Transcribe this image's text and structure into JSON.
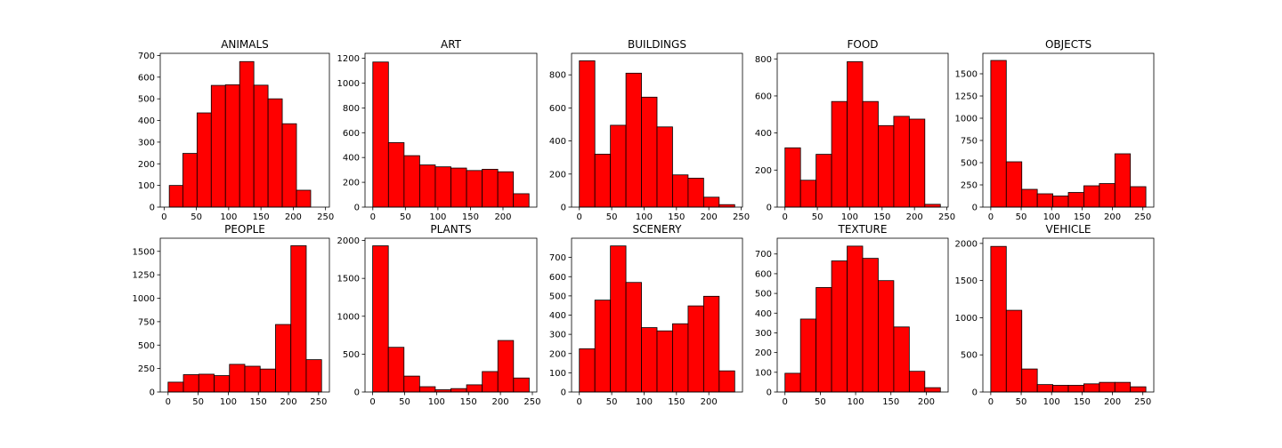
{
  "figure": {
    "bar_color": "#ff0000",
    "edge_color": "#000000",
    "background": "#ffffff"
  },
  "chart_data": [
    {
      "type": "bar",
      "title": "ANIMALS",
      "bins": [
        [
          8,
          29
        ],
        [
          29,
          51
        ],
        [
          51,
          73
        ],
        [
          73,
          95
        ],
        [
          95,
          117
        ],
        [
          117,
          139
        ],
        [
          139,
          161
        ],
        [
          161,
          183
        ],
        [
          183,
          205
        ],
        [
          205,
          227
        ]
      ],
      "values": [
        100,
        248,
        435,
        562,
        565,
        672,
        563,
        500,
        385,
        78
      ],
      "xlim": [
        -6,
        256
      ],
      "xticks": [
        0,
        50,
        100,
        150,
        200,
        250
      ],
      "ylim": [
        0,
        710
      ],
      "yticks": [
        0,
        100,
        200,
        300,
        400,
        500,
        600,
        700
      ]
    },
    {
      "type": "bar",
      "title": "ART",
      "bins": [
        [
          0,
          24
        ],
        [
          24,
          48
        ],
        [
          48,
          72
        ],
        [
          72,
          96
        ],
        [
          96,
          120
        ],
        [
          120,
          144
        ],
        [
          144,
          168
        ],
        [
          168,
          192
        ],
        [
          192,
          216
        ],
        [
          216,
          240
        ]
      ],
      "values": [
        1170,
        520,
        415,
        340,
        325,
        315,
        295,
        305,
        285,
        108
      ],
      "xlim": [
        -12,
        252
      ],
      "xticks": [
        0,
        50,
        100,
        150,
        200
      ],
      "ylim": [
        0,
        1240
      ],
      "yticks": [
        0,
        200,
        400,
        600,
        800,
        1000,
        1200
      ]
    },
    {
      "type": "bar",
      "title": "BUILDINGS",
      "bins": [
        [
          0,
          24
        ],
        [
          24,
          48
        ],
        [
          48,
          72
        ],
        [
          72,
          96
        ],
        [
          96,
          120
        ],
        [
          120,
          144
        ],
        [
          144,
          168
        ],
        [
          168,
          192
        ],
        [
          192,
          216
        ],
        [
          216,
          240
        ]
      ],
      "values": [
        885,
        320,
        495,
        810,
        665,
        485,
        195,
        175,
        60,
        15
      ],
      "xlim": [
        -12,
        252
      ],
      "xticks": [
        0,
        50,
        100,
        150,
        200,
        250
      ],
      "ylim": [
        0,
        930
      ],
      "yticks": [
        0,
        200,
        400,
        600,
        800
      ]
    },
    {
      "type": "bar",
      "title": "FOOD",
      "bins": [
        [
          0,
          24
        ],
        [
          24,
          48
        ],
        [
          48,
          72
        ],
        [
          72,
          96
        ],
        [
          96,
          120
        ],
        [
          120,
          144
        ],
        [
          144,
          168
        ],
        [
          168,
          192
        ],
        [
          192,
          216
        ],
        [
          216,
          240
        ]
      ],
      "values": [
        320,
        145,
        285,
        570,
        785,
        570,
        440,
        490,
        475,
        15
      ],
      "xlim": [
        -12,
        252
      ],
      "xticks": [
        0,
        50,
        100,
        150,
        200,
        250
      ],
      "ylim": [
        0,
        830
      ],
      "yticks": [
        0,
        200,
        400,
        600,
        800
      ]
    },
    {
      "type": "bar",
      "title": "OBJECTS",
      "bins": [
        [
          0,
          25.5
        ],
        [
          25.5,
          51
        ],
        [
          51,
          76.5
        ],
        [
          76.5,
          102
        ],
        [
          102,
          127.5
        ],
        [
          127.5,
          153
        ],
        [
          153,
          178.5
        ],
        [
          178.5,
          204
        ],
        [
          204,
          229.5
        ],
        [
          229.5,
          255
        ]
      ],
      "values": [
        1650,
        510,
        200,
        150,
        125,
        165,
        240,
        265,
        600,
        230
      ],
      "xlim": [
        -13,
        268
      ],
      "xticks": [
        0,
        50,
        100,
        150,
        200,
        250
      ],
      "ylim": [
        0,
        1730
      ],
      "yticks": [
        0,
        250,
        500,
        750,
        1000,
        1250,
        1500
      ]
    },
    {
      "type": "bar",
      "title": "PEOPLE",
      "bins": [
        [
          0,
          25.5
        ],
        [
          25.5,
          51
        ],
        [
          51,
          76.5
        ],
        [
          76.5,
          102
        ],
        [
          102,
          127.5
        ],
        [
          127.5,
          153
        ],
        [
          153,
          178.5
        ],
        [
          178.5,
          204
        ],
        [
          204,
          229.5
        ],
        [
          229.5,
          255
        ]
      ],
      "values": [
        105,
        185,
        190,
        175,
        295,
        275,
        245,
        720,
        1560,
        345
      ],
      "xlim": [
        -13,
        268
      ],
      "xticks": [
        0,
        50,
        100,
        150,
        200,
        250
      ],
      "ylim": [
        0,
        1640
      ],
      "yticks": [
        0,
        250,
        500,
        750,
        1000,
        1250,
        1500
      ]
    },
    {
      "type": "bar",
      "title": "PLANTS",
      "bins": [
        [
          0,
          24.5
        ],
        [
          24.5,
          49
        ],
        [
          49,
          73.5
        ],
        [
          73.5,
          98
        ],
        [
          98,
          122.5
        ],
        [
          122.5,
          147
        ],
        [
          147,
          171.5
        ],
        [
          171.5,
          196
        ],
        [
          196,
          220.5
        ],
        [
          220.5,
          245
        ]
      ],
      "values": [
        1930,
        590,
        210,
        70,
        30,
        45,
        95,
        270,
        680,
        185
      ],
      "xlim": [
        -12,
        257
      ],
      "xticks": [
        0,
        50,
        100,
        150,
        200,
        250
      ],
      "ylim": [
        0,
        2030
      ],
      "yticks": [
        0,
        500,
        1000,
        1500,
        2000
      ]
    },
    {
      "type": "bar",
      "title": "SCENERY",
      "bins": [
        [
          0,
          24
        ],
        [
          24,
          48
        ],
        [
          48,
          72
        ],
        [
          72,
          96
        ],
        [
          96,
          120
        ],
        [
          120,
          144
        ],
        [
          144,
          168
        ],
        [
          168,
          192
        ],
        [
          192,
          216
        ],
        [
          216,
          240
        ]
      ],
      "values": [
        225,
        478,
        760,
        570,
        335,
        318,
        355,
        448,
        498,
        110
      ],
      "xlim": [
        -12,
        252
      ],
      "xticks": [
        0,
        50,
        100,
        150,
        200
      ],
      "ylim": [
        0,
        800
      ],
      "yticks": [
        0,
        100,
        200,
        300,
        400,
        500,
        600,
        700
      ]
    },
    {
      "type": "bar",
      "title": "TEXTURE",
      "bins": [
        [
          0,
          22
        ],
        [
          22,
          44
        ],
        [
          44,
          66
        ],
        [
          66,
          88
        ],
        [
          88,
          110
        ],
        [
          110,
          132
        ],
        [
          132,
          154
        ],
        [
          154,
          176
        ],
        [
          176,
          198
        ],
        [
          198,
          220
        ]
      ],
      "values": [
        95,
        370,
        530,
        665,
        740,
        678,
        565,
        330,
        105,
        22
      ],
      "xlim": [
        -11,
        231
      ],
      "xticks": [
        0,
        50,
        100,
        150,
        200
      ],
      "ylim": [
        0,
        780
      ],
      "yticks": [
        0,
        100,
        200,
        300,
        400,
        500,
        600,
        700
      ]
    },
    {
      "type": "bar",
      "title": "VEHICLE",
      "bins": [
        [
          0,
          25.5
        ],
        [
          25.5,
          51
        ],
        [
          51,
          76.5
        ],
        [
          76.5,
          102
        ],
        [
          102,
          127.5
        ],
        [
          127.5,
          153
        ],
        [
          153,
          178.5
        ],
        [
          178.5,
          204
        ],
        [
          204,
          229.5
        ],
        [
          229.5,
          255
        ]
      ],
      "values": [
        1960,
        1100,
        310,
        100,
        90,
        90,
        110,
        130,
        130,
        70
      ],
      "xlim": [
        -13,
        268
      ],
      "xticks": [
        0,
        50,
        100,
        150,
        200,
        250
      ],
      "ylim": [
        0,
        2070
      ],
      "yticks": [
        0,
        500,
        1000,
        1500,
        2000
      ]
    }
  ]
}
